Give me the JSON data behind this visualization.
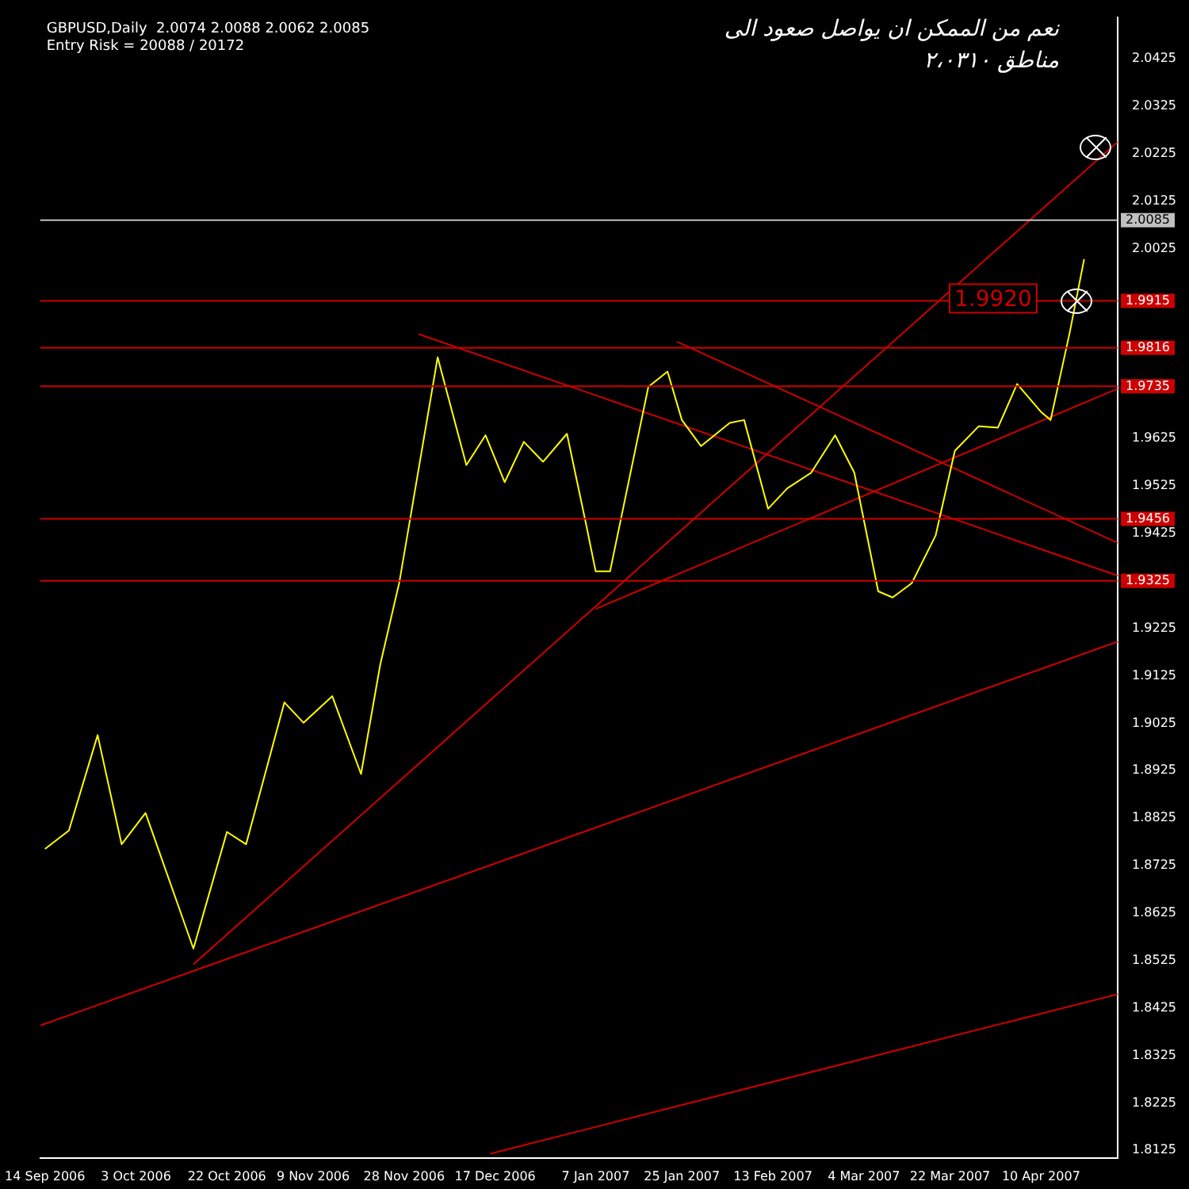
{
  "chart_data": {
    "type": "line",
    "title": "GBPUSD,Daily  2.0074 2.0088 2.0062 2.0085",
    "subtitle": "Entry Risk = 20088 / 20172",
    "annotations": [
      "نعم من الممكن ان يواصل صعود الى",
      "مناطق ٢،٠٣١٠",
      {
        "text": "1.9920",
        "x": "2007-03-31",
        "y": 1.992
      }
    ],
    "xlim": [
      "2006-09-13",
      "2007-04-26"
    ],
    "xticks": [
      {
        "value": "2006-09-14",
        "label": "14 Sep 2006"
      },
      {
        "value": "2006-10-03",
        "label": "3 Oct 2006"
      },
      {
        "value": "2006-10-22",
        "label": "22 Oct 2006"
      },
      {
        "value": "2006-11-09",
        "label": "9 Nov 2006"
      },
      {
        "value": "2006-11-28",
        "label": "28 Nov 2006"
      },
      {
        "value": "2006-12-17",
        "label": "17 Dec 2006"
      },
      {
        "value": "2007-01-07",
        "label": "7 Jan 2007"
      },
      {
        "value": "2007-01-25",
        "label": "25 Jan 2007"
      },
      {
        "value": "2007-02-13",
        "label": "13 Feb 2007"
      },
      {
        "value": "2007-03-04",
        "label": "4 Mar 2007"
      },
      {
        "value": "2007-03-22",
        "label": "22 Mar 2007"
      },
      {
        "value": "2007-04-10",
        "label": "10 Apr 2007"
      }
    ],
    "ylim": [
      1.8109,
      2.0513
    ],
    "yticks": [
      1.8125,
      1.8225,
      1.8325,
      1.8425,
      1.8525,
      1.8625,
      1.8725,
      1.8825,
      1.8925,
      1.9025,
      1.9125,
      1.9225,
      1.9425,
      1.9525,
      1.9625,
      2.0025,
      2.0125,
      2.0225,
      2.0325,
      2.0425
    ],
    "grid": false,
    "legend": false,
    "marker": "none",
    "ref_lines": [
      {
        "axis": "y",
        "value": 2.0085,
        "label": "2.0085",
        "color": "#c0c0c0"
      },
      {
        "axis": "y",
        "value": 1.9915,
        "label": "1.9915",
        "color": "#cc0000"
      },
      {
        "axis": "y",
        "value": 1.9816,
        "label": "1.9816",
        "color": "#cc0000"
      },
      {
        "axis": "y",
        "value": 1.9735,
        "label": "1.9735",
        "color": "#cc0000"
      },
      {
        "axis": "y",
        "value": 1.9456,
        "label": "1.9456",
        "color": "#cc0000"
      },
      {
        "axis": "y",
        "value": 1.9325,
        "label": "1.9325",
        "color": "#cc0000"
      }
    ],
    "series": [
      {
        "type": "line",
        "color": "#ffff00",
        "x": [
          "2006-09-14",
          "2006-09-19",
          "2006-09-25",
          "2006-09-30",
          "2006-10-05",
          "2006-10-15",
          "2006-10-22",
          "2006-10-26",
          "2006-11-03",
          "2006-11-07",
          "2006-11-13",
          "2006-11-19",
          "2006-11-23",
          "2006-11-27",
          "2006-12-05",
          "2006-12-11",
          "2006-12-15",
          "2006-12-19",
          "2006-12-23",
          "2006-12-27",
          "2007-01-01",
          "2007-01-05",
          "2007-01-07",
          "2007-01-10",
          "2007-01-18",
          "2007-01-22",
          "2007-01-25",
          "2007-01-29",
          "2007-02-04",
          "2007-02-07",
          "2007-02-12",
          "2007-02-16",
          "2007-02-21",
          "2007-02-26",
          "2007-03-02",
          "2007-03-07",
          "2007-03-10",
          "2007-03-14",
          "2007-03-19",
          "2007-03-23",
          "2007-03-28",
          "2007-04-01",
          "2007-04-05",
          "2007-04-10",
          "2007-04-12",
          "2007-04-16",
          "2007-04-19"
        ],
        "values": [
          1.876,
          1.8799,
          1.9,
          1.877,
          1.8836,
          1.855,
          1.8796,
          1.877,
          1.9069,
          1.9026,
          1.9082,
          1.8918,
          1.9148,
          1.9322,
          1.9796,
          1.9569,
          1.9632,
          1.9533,
          1.9618,
          1.9576,
          1.9635,
          1.9444,
          1.9345,
          1.9345,
          1.9734,
          1.9766,
          1.9664,
          1.9609,
          1.9658,
          1.9664,
          1.9477,
          1.952,
          1.9553,
          1.9632,
          1.9553,
          1.9303,
          1.929,
          1.932,
          1.9421,
          1.9599,
          1.9651,
          1.9648,
          1.974,
          1.9681,
          1.9664,
          1.9849,
          2.0003
        ]
      },
      {
        "type": "line",
        "color": "#cc0000",
        "x": [
          "2006-10-15",
          "2007-04-26"
        ],
        "values": [
          1.8517,
          2.025
        ]
      },
      {
        "type": "line",
        "color": "#cc0000",
        "x": [
          "2006-09-13",
          "2007-04-26"
        ],
        "values": [
          1.8388,
          1.9197
        ]
      },
      {
        "type": "line",
        "color": "#cc0000",
        "x": [
          "2006-12-16",
          "2007-04-26"
        ],
        "values": [
          1.8118,
          1.8454
        ]
      },
      {
        "type": "line",
        "color": "#cc0000",
        "x": [
          "2006-12-01",
          "2007-04-26"
        ],
        "values": [
          1.9845,
          1.9336
        ]
      },
      {
        "type": "line",
        "color": "#cc0000",
        "x": [
          "2007-01-24",
          "2007-04-26"
        ],
        "values": [
          1.9829,
          1.9405
        ]
      },
      {
        "type": "line",
        "color": "#cc0000",
        "x": [
          "2007-01-07",
          "2007-04-26"
        ],
        "values": [
          1.9266,
          1.973
        ]
      }
    ]
  }
}
